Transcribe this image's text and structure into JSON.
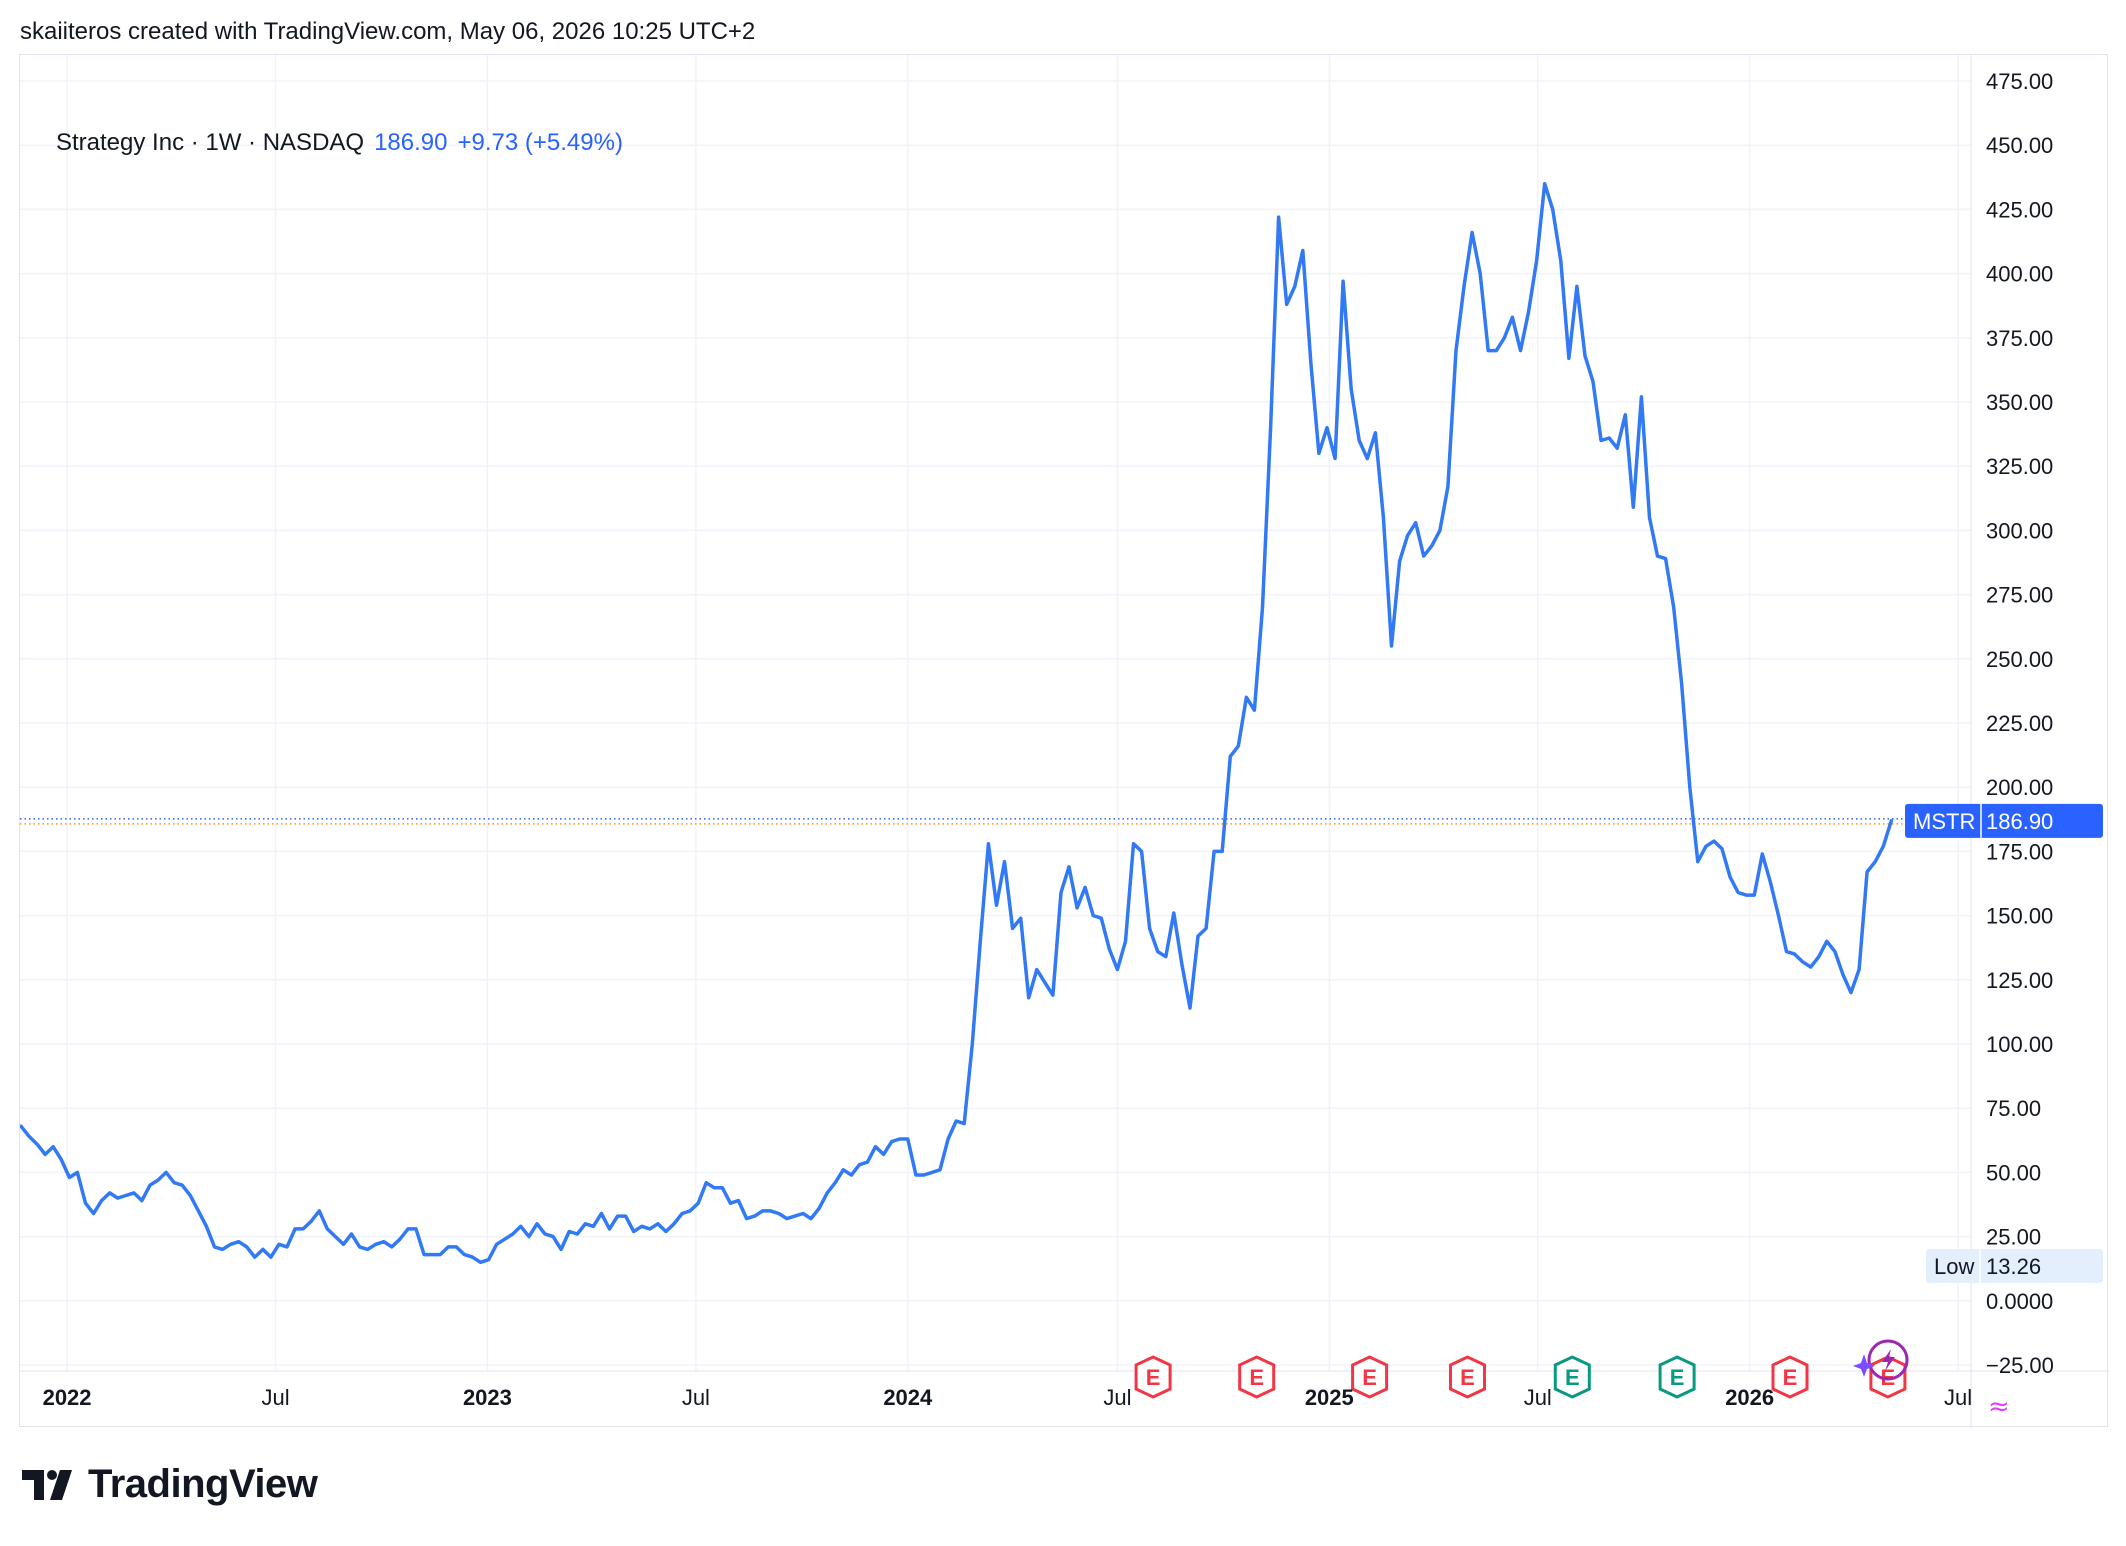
{
  "header": {
    "attribution": "skaiiteros created with TradingView.com, May 06, 2026 10:25 UTC+2"
  },
  "legend": {
    "symbol_line": "Strategy Inc · 1W · NASDAQ",
    "last_value": "186.90",
    "change": "+9.73 (+5.49%)"
  },
  "price_tag": {
    "ticker": "MSTR",
    "value": "186.90"
  },
  "low_tag": {
    "label": "Low",
    "value": "13.26"
  },
  "branding": {
    "name": "TradingView"
  },
  "colors": {
    "line": "#3179f5",
    "label_bg": "#2962ff",
    "earnings_red": "#f23645",
    "earnings_green": "#089981",
    "grid": "#f0f3fa",
    "low_tag_bg": "#e3effd",
    "event_purple": "#9c27b0",
    "event_magenta": "#e040fb"
  },
  "chart_data": {
    "type": "line",
    "title": "Strategy Inc · 1W · NASDAQ",
    "xlabel": "",
    "ylabel": "",
    "y_range": [
      -25,
      475
    ],
    "x_range": [
      "2021-11-22",
      "2026-07-20"
    ],
    "grid": true,
    "y_ticks": [
      "475.00",
      "450.00",
      "425.00",
      "400.00",
      "375.00",
      "350.00",
      "325.00",
      "300.00",
      "275.00",
      "250.00",
      "225.00",
      "200.00",
      "175.00",
      "150.00",
      "125.00",
      "100.00",
      "75.00",
      "50.00",
      "25.00",
      "0.0000",
      "−25.00"
    ],
    "x_ticks": [
      {
        "label": "2022",
        "date": "2022-01-01",
        "bold": true
      },
      {
        "label": "Jul",
        "date": "2022-07-01",
        "bold": false
      },
      {
        "label": "2023",
        "date": "2023-01-01",
        "bold": true
      },
      {
        "label": "Jul",
        "date": "2023-07-01",
        "bold": false
      },
      {
        "label": "2024",
        "date": "2024-01-01",
        "bold": true
      },
      {
        "label": "Jul",
        "date": "2024-07-01",
        "bold": false
      },
      {
        "label": "2025",
        "date": "2025-01-01",
        "bold": true
      },
      {
        "label": "Jul",
        "date": "2025-07-01",
        "bold": false
      },
      {
        "label": "2026",
        "date": "2026-01-01",
        "bold": true
      },
      {
        "label": "Jul",
        "date": "2026-07-01",
        "bold": false
      }
    ],
    "last_price": 186.9,
    "low": 13.26,
    "earnings_markers": [
      {
        "date": "2024-08-01",
        "type": "E",
        "color": "#f23645"
      },
      {
        "date": "2024-10-30",
        "type": "E",
        "color": "#f23645"
      },
      {
        "date": "2025-02-05",
        "type": "E",
        "color": "#f23645"
      },
      {
        "date": "2025-05-01",
        "type": "E",
        "color": "#f23645"
      },
      {
        "date": "2025-07-31",
        "type": "E",
        "color": "#089981"
      },
      {
        "date": "2025-10-30",
        "type": "E",
        "color": "#089981"
      },
      {
        "date": "2026-02-05",
        "type": "E",
        "color": "#f23645"
      },
      {
        "date": "2026-05-01",
        "type": "E",
        "color": "#f23645"
      }
    ],
    "series": [
      {
        "values": [
          [
            "2021-11-22",
            68
          ],
          [
            "2021-11-29",
            64
          ],
          [
            "2021-12-06",
            61
          ],
          [
            "2021-12-13",
            57
          ],
          [
            "2021-12-20",
            60
          ],
          [
            "2021-12-27",
            55
          ],
          [
            "2022-01-03",
            48
          ],
          [
            "2022-01-10",
            50
          ],
          [
            "2022-01-17",
            38
          ],
          [
            "2022-01-24",
            34
          ],
          [
            "2022-01-31",
            39
          ],
          [
            "2022-02-07",
            42
          ],
          [
            "2022-02-14",
            40
          ],
          [
            "2022-02-21",
            41
          ],
          [
            "2022-02-28",
            42
          ],
          [
            "2022-03-07",
            39
          ],
          [
            "2022-03-14",
            45
          ],
          [
            "2022-03-21",
            47
          ],
          [
            "2022-03-28",
            50
          ],
          [
            "2022-04-04",
            46
          ],
          [
            "2022-04-11",
            45
          ],
          [
            "2022-04-18",
            41
          ],
          [
            "2022-04-25",
            35
          ],
          [
            "2022-05-02",
            29
          ],
          [
            "2022-05-09",
            21
          ],
          [
            "2022-05-16",
            20
          ],
          [
            "2022-05-23",
            22
          ],
          [
            "2022-05-30",
            23
          ],
          [
            "2022-06-06",
            21
          ],
          [
            "2022-06-13",
            17
          ],
          [
            "2022-06-20",
            20
          ],
          [
            "2022-06-27",
            17
          ],
          [
            "2022-07-04",
            22
          ],
          [
            "2022-07-11",
            21
          ],
          [
            "2022-07-18",
            28
          ],
          [
            "2022-07-25",
            28
          ],
          [
            "2022-08-01",
            31
          ],
          [
            "2022-08-08",
            35
          ],
          [
            "2022-08-15",
            28
          ],
          [
            "2022-08-22",
            25
          ],
          [
            "2022-08-29",
            22
          ],
          [
            "2022-09-05",
            26
          ],
          [
            "2022-09-12",
            21
          ],
          [
            "2022-09-19",
            20
          ],
          [
            "2022-09-26",
            22
          ],
          [
            "2022-10-03",
            23
          ],
          [
            "2022-10-10",
            21
          ],
          [
            "2022-10-17",
            24
          ],
          [
            "2022-10-24",
            28
          ],
          [
            "2022-10-31",
            28
          ],
          [
            "2022-11-07",
            18
          ],
          [
            "2022-11-14",
            18
          ],
          [
            "2022-11-21",
            18
          ],
          [
            "2022-11-28",
            21
          ],
          [
            "2022-12-05",
            21
          ],
          [
            "2022-12-12",
            18
          ],
          [
            "2022-12-19",
            17
          ],
          [
            "2022-12-26",
            15
          ],
          [
            "2023-01-02",
            16
          ],
          [
            "2023-01-09",
            22
          ],
          [
            "2023-01-16",
            24
          ],
          [
            "2023-01-23",
            26
          ],
          [
            "2023-01-30",
            29
          ],
          [
            "2023-02-06",
            25
          ],
          [
            "2023-02-13",
            30
          ],
          [
            "2023-02-20",
            26
          ],
          [
            "2023-02-27",
            25
          ],
          [
            "2023-03-06",
            20
          ],
          [
            "2023-03-13",
            27
          ],
          [
            "2023-03-20",
            26
          ],
          [
            "2023-03-27",
            30
          ],
          [
            "2023-04-03",
            29
          ],
          [
            "2023-04-10",
            34
          ],
          [
            "2023-04-17",
            28
          ],
          [
            "2023-04-24",
            33
          ],
          [
            "2023-05-01",
            33
          ],
          [
            "2023-05-08",
            27
          ],
          [
            "2023-05-15",
            29
          ],
          [
            "2023-05-22",
            28
          ],
          [
            "2023-05-29",
            30
          ],
          [
            "2023-06-05",
            27
          ],
          [
            "2023-06-12",
            30
          ],
          [
            "2023-06-19",
            34
          ],
          [
            "2023-06-26",
            35
          ],
          [
            "2023-07-03",
            38
          ],
          [
            "2023-07-10",
            46
          ],
          [
            "2023-07-17",
            44
          ],
          [
            "2023-07-24",
            44
          ],
          [
            "2023-07-31",
            38
          ],
          [
            "2023-08-07",
            39
          ],
          [
            "2023-08-14",
            32
          ],
          [
            "2023-08-21",
            33
          ],
          [
            "2023-08-28",
            35
          ],
          [
            "2023-09-04",
            35
          ],
          [
            "2023-09-11",
            34
          ],
          [
            "2023-09-18",
            32
          ],
          [
            "2023-09-25",
            33
          ],
          [
            "2023-10-02",
            34
          ],
          [
            "2023-10-09",
            32
          ],
          [
            "2023-10-16",
            36
          ],
          [
            "2023-10-23",
            42
          ],
          [
            "2023-10-30",
            46
          ],
          [
            "2023-11-06",
            51
          ],
          [
            "2023-11-13",
            49
          ],
          [
            "2023-11-20",
            53
          ],
          [
            "2023-11-27",
            54
          ],
          [
            "2023-12-04",
            60
          ],
          [
            "2023-12-11",
            57
          ],
          [
            "2023-12-18",
            62
          ],
          [
            "2023-12-25",
            63
          ],
          [
            "2024-01-01",
            63
          ],
          [
            "2024-01-08",
            49
          ],
          [
            "2024-01-15",
            49
          ],
          [
            "2024-01-22",
            50
          ],
          [
            "2024-01-29",
            51
          ],
          [
            "2024-02-05",
            63
          ],
          [
            "2024-02-12",
            70
          ],
          [
            "2024-02-19",
            69
          ],
          [
            "2024-02-26",
            100
          ],
          [
            "2024-03-04",
            140
          ],
          [
            "2024-03-11",
            178
          ],
          [
            "2024-03-18",
            154
          ],
          [
            "2024-03-25",
            171
          ],
          [
            "2024-04-01",
            145
          ],
          [
            "2024-04-08",
            149
          ],
          [
            "2024-04-15",
            118
          ],
          [
            "2024-04-22",
            129
          ],
          [
            "2024-04-29",
            124
          ],
          [
            "2024-05-06",
            119
          ],
          [
            "2024-05-13",
            159
          ],
          [
            "2024-05-20",
            169
          ],
          [
            "2024-05-27",
            153
          ],
          [
            "2024-06-03",
            161
          ],
          [
            "2024-06-10",
            150
          ],
          [
            "2024-06-17",
            149
          ],
          [
            "2024-06-24",
            137
          ],
          [
            "2024-07-01",
            129
          ],
          [
            "2024-07-08",
            140
          ],
          [
            "2024-07-15",
            178
          ],
          [
            "2024-07-22",
            175
          ],
          [
            "2024-07-29",
            145
          ],
          [
            "2024-08-05",
            136
          ],
          [
            "2024-08-12",
            134
          ],
          [
            "2024-08-19",
            151
          ],
          [
            "2024-08-26",
            131
          ],
          [
            "2024-09-02",
            114
          ],
          [
            "2024-09-09",
            142
          ],
          [
            "2024-09-16",
            145
          ],
          [
            "2024-09-23",
            175
          ],
          [
            "2024-09-30",
            175
          ],
          [
            "2024-10-07",
            212
          ],
          [
            "2024-10-14",
            216
          ],
          [
            "2024-10-21",
            235
          ],
          [
            "2024-10-28",
            230
          ],
          [
            "2024-11-04",
            270
          ],
          [
            "2024-11-11",
            340
          ],
          [
            "2024-11-18",
            422
          ],
          [
            "2024-11-25",
            388
          ],
          [
            "2024-12-02",
            395
          ],
          [
            "2024-12-09",
            409
          ],
          [
            "2024-12-16",
            365
          ],
          [
            "2024-12-23",
            330
          ],
          [
            "2024-12-30",
            340
          ],
          [
            "2025-01-06",
            328
          ],
          [
            "2025-01-13",
            397
          ],
          [
            "2025-01-20",
            355
          ],
          [
            "2025-01-27",
            335
          ],
          [
            "2025-02-03",
            328
          ],
          [
            "2025-02-10",
            338
          ],
          [
            "2025-02-17",
            305
          ],
          [
            "2025-02-24",
            255
          ],
          [
            "2025-03-03",
            288
          ],
          [
            "2025-03-10",
            298
          ],
          [
            "2025-03-17",
            303
          ],
          [
            "2025-03-24",
            290
          ],
          [
            "2025-03-31",
            294
          ],
          [
            "2025-04-07",
            300
          ],
          [
            "2025-04-14",
            317
          ],
          [
            "2025-04-21",
            370
          ],
          [
            "2025-04-28",
            395
          ],
          [
            "2025-05-05",
            416
          ],
          [
            "2025-05-12",
            400
          ],
          [
            "2025-05-19",
            370
          ],
          [
            "2025-05-26",
            370
          ],
          [
            "2025-06-02",
            375
          ],
          [
            "2025-06-09",
            383
          ],
          [
            "2025-06-16",
            370
          ],
          [
            "2025-06-23",
            385
          ],
          [
            "2025-06-30",
            405
          ],
          [
            "2025-07-07",
            435
          ],
          [
            "2025-07-14",
            425
          ],
          [
            "2025-07-21",
            405
          ],
          [
            "2025-07-28",
            367
          ],
          [
            "2025-08-04",
            395
          ],
          [
            "2025-08-11",
            368
          ],
          [
            "2025-08-18",
            358
          ],
          [
            "2025-08-25",
            335
          ],
          [
            "2025-09-01",
            336
          ],
          [
            "2025-09-08",
            332
          ],
          [
            "2025-09-15",
            345
          ],
          [
            "2025-09-22",
            309
          ],
          [
            "2025-09-29",
            352
          ],
          [
            "2025-10-06",
            305
          ],
          [
            "2025-10-13",
            290
          ],
          [
            "2025-10-20",
            289
          ],
          [
            "2025-10-27",
            270
          ],
          [
            "2025-11-03",
            240
          ],
          [
            "2025-11-10",
            200
          ],
          [
            "2025-11-17",
            171
          ],
          [
            "2025-11-24",
            177
          ],
          [
            "2025-12-01",
            179
          ],
          [
            "2025-12-08",
            176
          ],
          [
            "2025-12-15",
            165
          ],
          [
            "2025-12-22",
            159
          ],
          [
            "2025-12-29",
            158
          ],
          [
            "2026-01-05",
            158
          ],
          [
            "2026-01-12",
            174
          ],
          [
            "2026-01-19",
            163
          ],
          [
            "2026-01-26",
            150
          ],
          [
            "2026-02-02",
            136
          ],
          [
            "2026-02-09",
            135
          ],
          [
            "2026-02-16",
            132
          ],
          [
            "2026-02-23",
            130
          ],
          [
            "2026-03-02",
            134
          ],
          [
            "2026-03-09",
            140
          ],
          [
            "2026-03-16",
            136
          ],
          [
            "2026-03-23",
            127
          ],
          [
            "2026-03-30",
            120
          ],
          [
            "2026-04-06",
            129
          ],
          [
            "2026-04-13",
            167
          ],
          [
            "2026-04-20",
            171
          ],
          [
            "2026-04-27",
            177
          ],
          [
            "2026-05-04",
            186.9
          ]
        ]
      }
    ]
  }
}
